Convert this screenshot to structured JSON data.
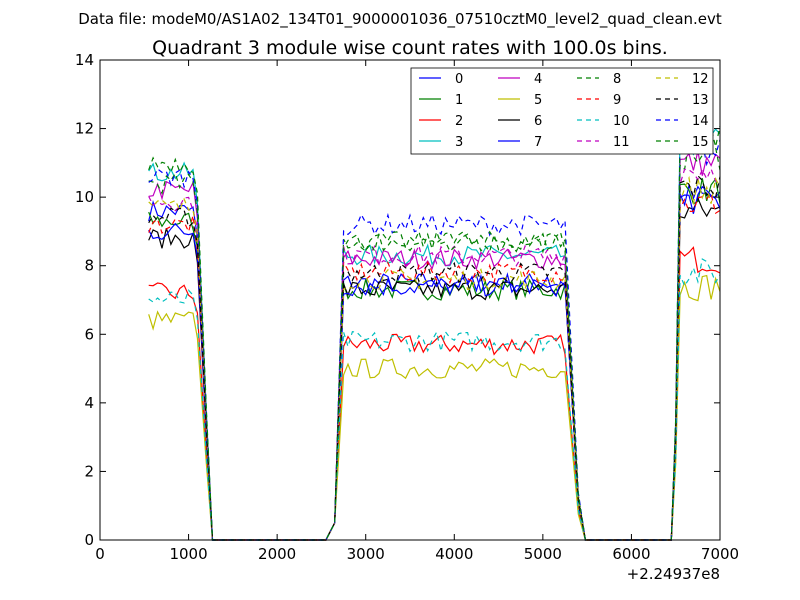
{
  "chart_data": {
    "type": "line",
    "suptitle": "Data file: modeM0/AS1A02_134T01_9000001036_07510cztM0_level2_quad_clean.evt",
    "title": "Quadrant 3 module wise count rates with 100.0s bins.",
    "xlabel": "",
    "ylabel": "",
    "x_offset_label": "+2.24937e8",
    "xlim": [
      0,
      7000
    ],
    "ylim": [
      0,
      14
    ],
    "xticks": [
      0,
      1000,
      2000,
      3000,
      4000,
      5000,
      6000,
      7000
    ],
    "yticks": [
      0,
      2,
      4,
      6,
      8,
      10,
      12,
      14
    ],
    "grid": false,
    "legend": {
      "position": "top-right",
      "columns": 4
    },
    "series_meta": [
      {
        "name": "0",
        "color": "#0000ff",
        "style": "solid"
      },
      {
        "name": "1",
        "color": "#008000",
        "style": "solid"
      },
      {
        "name": "2",
        "color": "#ff0000",
        "style": "solid"
      },
      {
        "name": "3",
        "color": "#00bfbf",
        "style": "solid"
      },
      {
        "name": "4",
        "color": "#bf00bf",
        "style": "solid"
      },
      {
        "name": "5",
        "color": "#bfbf00",
        "style": "solid"
      },
      {
        "name": "6",
        "color": "#000000",
        "style": "solid"
      },
      {
        "name": "7",
        "color": "#0000ff",
        "style": "solid"
      },
      {
        "name": "8",
        "color": "#008000",
        "style": "dashed"
      },
      {
        "name": "9",
        "color": "#ff0000",
        "style": "dashed"
      },
      {
        "name": "10",
        "color": "#00bfbf",
        "style": "dashed"
      },
      {
        "name": "11",
        "color": "#bf00bf",
        "style": "dashed"
      },
      {
        "name": "12",
        "color": "#bfbf00",
        "style": "dashed"
      },
      {
        "name": "13",
        "color": "#000000",
        "style": "dashed"
      },
      {
        "name": "14",
        "color": "#0000ff",
        "style": "dashed"
      },
      {
        "name": "15",
        "color": "#008000",
        "style": "dashed"
      }
    ],
    "segments": [
      {
        "x_start": 550,
        "x_end": 1050,
        "step": 50,
        "peak_x": 1100,
        "fall_x": 1200,
        "zero_x": 1270
      },
      {
        "x_start": 2750,
        "x_end": 5250,
        "step": 50,
        "rise": [
          [
            2550,
            0
          ],
          [
            2650,
            0.5
          ]
        ],
        "fall_x": 5400,
        "zero_x": 5480
      },
      {
        "x_start": 6550,
        "x_end": 7000,
        "step": 50,
        "rise": [
          [
            6450,
            0
          ],
          [
            6500,
            3
          ]
        ]
      }
    ],
    "series_levels": [
      {
        "name": "0",
        "seg1": 9.6,
        "seg2": 7.5,
        "seg3": 10.0
      },
      {
        "name": "1",
        "seg1": 9.3,
        "seg2": 7.3,
        "seg3": 10.2
      },
      {
        "name": "2",
        "seg1": 7.2,
        "seg2": 5.7,
        "seg3": 8.2
      },
      {
        "name": "3",
        "seg1": 10.7,
        "seg2": 8.3,
        "seg3": 11.6
      },
      {
        "name": "4",
        "seg1": 10.2,
        "seg2": 8.2,
        "seg3": 11.0
      },
      {
        "name": "5",
        "seg1": 6.4,
        "seg2": 5.0,
        "seg3": 7.4
      },
      {
        "name": "6",
        "seg1": 8.8,
        "seg2": 7.3,
        "seg3": 9.6
      },
      {
        "name": "7",
        "seg1": 9.0,
        "seg2": 7.4,
        "seg3": 9.9
      },
      {
        "name": "8",
        "seg1": 10.4,
        "seg2": 8.7,
        "seg3": 11.2
      },
      {
        "name": "9",
        "seg1": 9.2,
        "seg2": 7.8,
        "seg3": 9.8
      },
      {
        "name": "10",
        "seg1": 7.0,
        "seg2": 5.8,
        "seg3": 7.8
      },
      {
        "name": "11",
        "seg1": 9.9,
        "seg2": 8.3,
        "seg3": 10.8
      },
      {
        "name": "12",
        "seg1": 9.7,
        "seg2": 7.6,
        "seg3": 10.2
      },
      {
        "name": "13",
        "seg1": 9.4,
        "seg2": 7.8,
        "seg3": 10.3
      },
      {
        "name": "14",
        "seg1": 10.6,
        "seg2": 9.2,
        "seg3": 11.3
      },
      {
        "name": "15",
        "seg1": 11.0,
        "seg2": 8.7,
        "seg3": 11.8
      }
    ]
  }
}
